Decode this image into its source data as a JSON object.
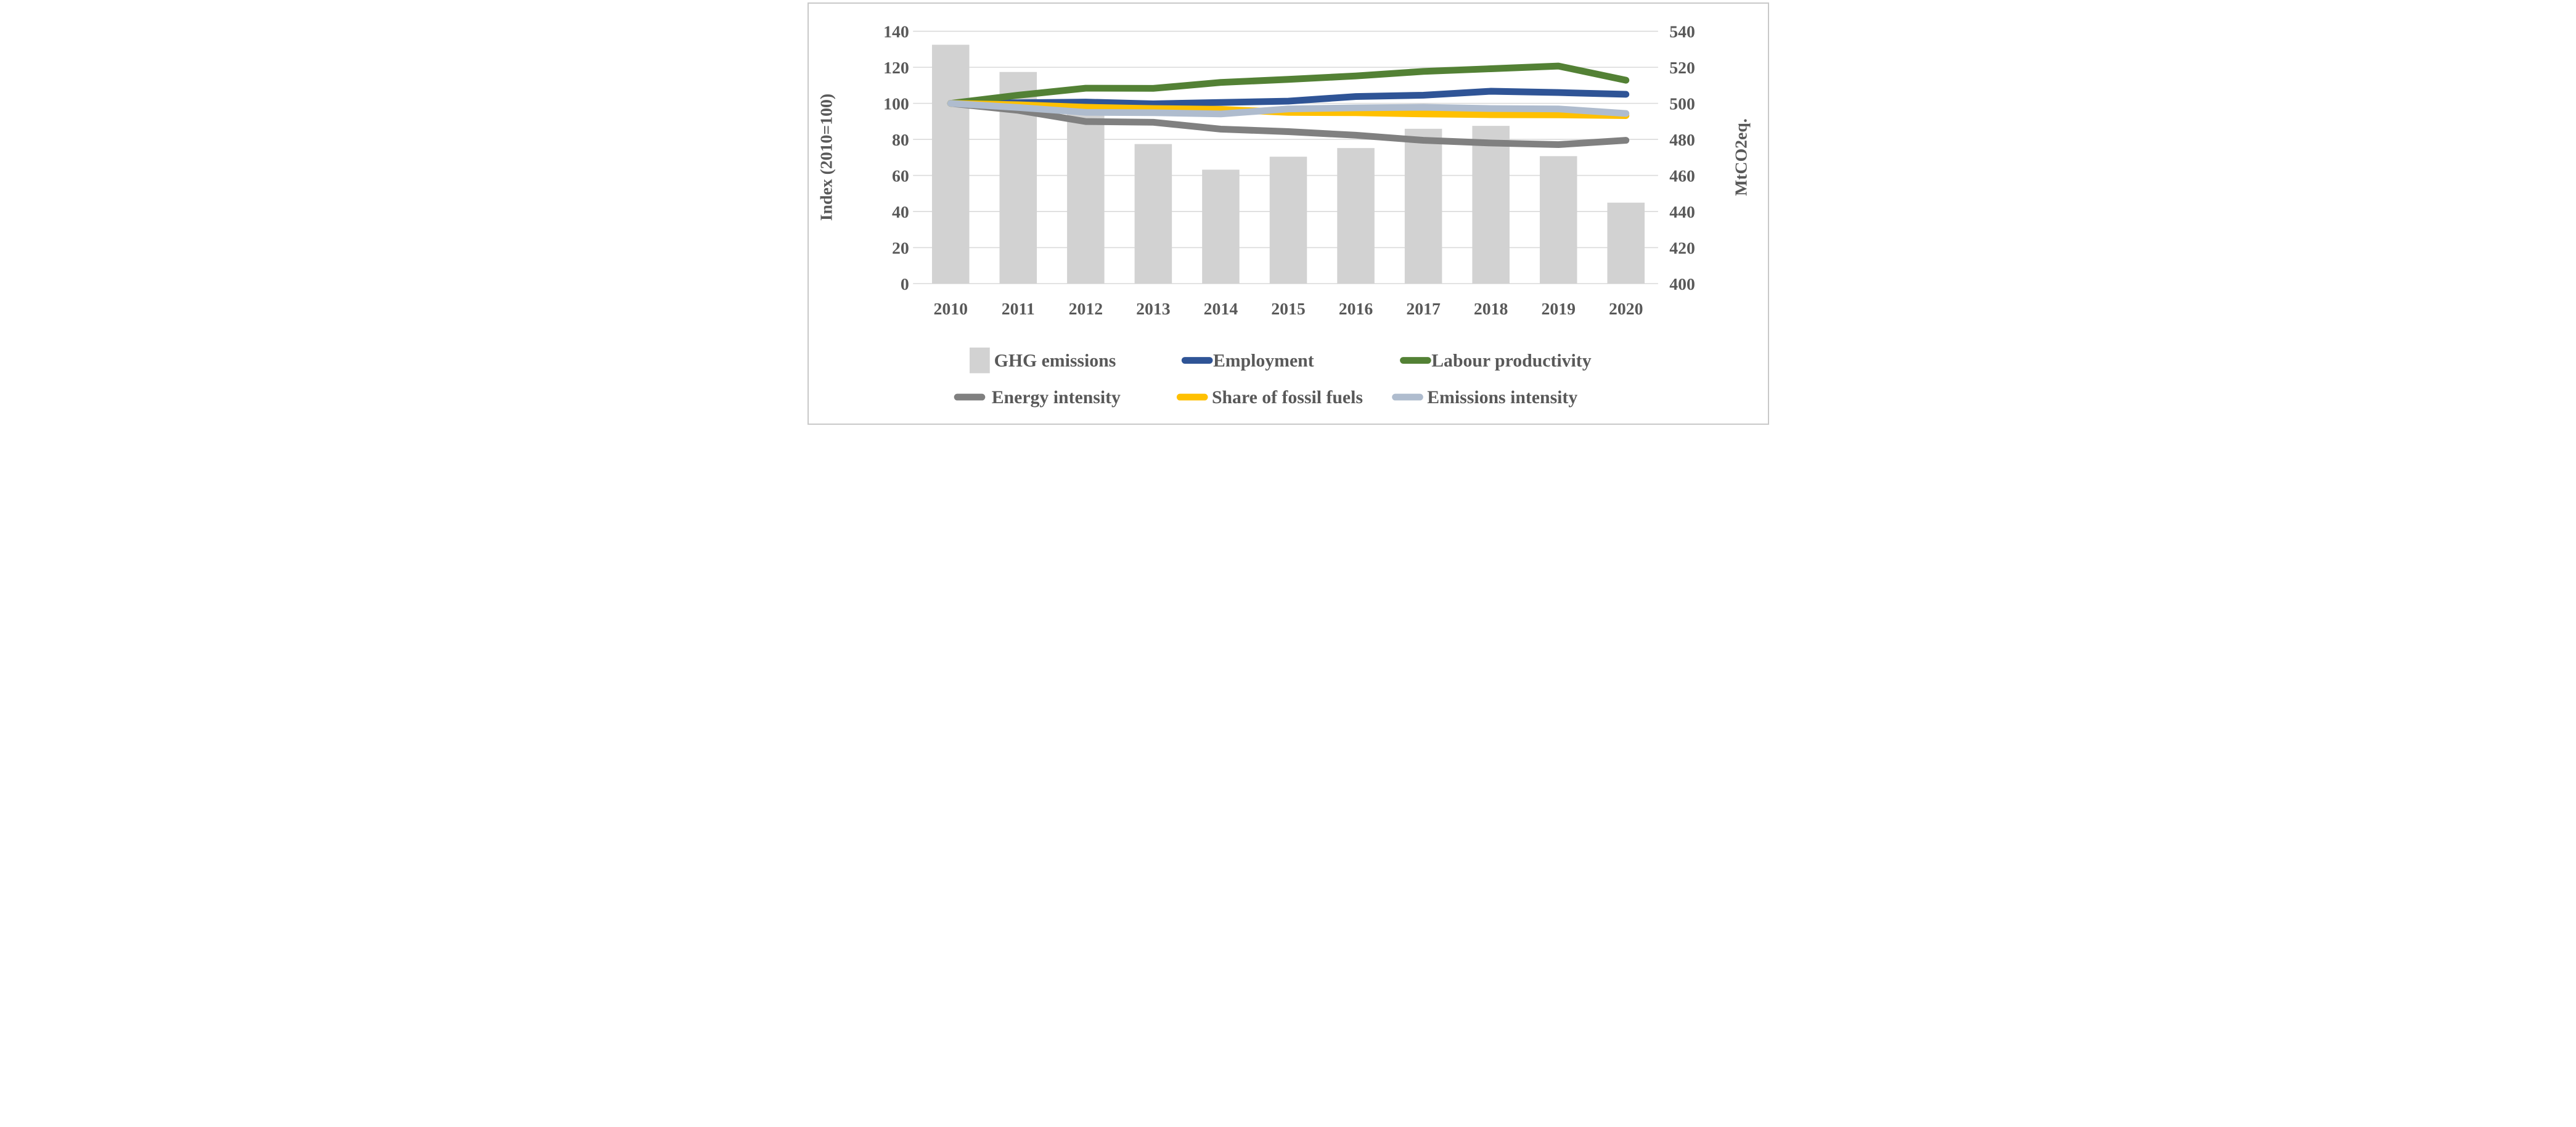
{
  "chart_data": {
    "type": "combo",
    "title": "",
    "categories": [
      "2010",
      "2011",
      "2012",
      "2013",
      "2014",
      "2015",
      "2016",
      "2017",
      "2018",
      "2019",
      "2020"
    ],
    "bar_series": {
      "name": "GHG emissions",
      "axis": "right",
      "unit": "MtCO2eq.",
      "values_mtco2eq": [
        532.5,
        517.4,
        495.0,
        477.4,
        463.2,
        470.4,
        475.2,
        485.9,
        487.5,
        470.7,
        444.9
      ],
      "color": "#d2d2d2"
    },
    "line_series": [
      {
        "name": "Employment",
        "color": "#2f5496",
        "values": [
          100,
          100.3,
          100.7,
          99.7,
          100.5,
          101.2,
          103.8,
          104.5,
          106.7,
          106.0,
          105.0
        ]
      },
      {
        "name": "Labour productivity",
        "color": "#538135",
        "values": [
          100,
          104.5,
          108.4,
          108.3,
          111.6,
          113.3,
          115.2,
          117.7,
          119.2,
          120.7,
          112.8
        ]
      },
      {
        "name": "Energy intensity",
        "color": "#808080",
        "values": [
          100,
          96.1,
          89.9,
          89.5,
          85.7,
          84.3,
          82.3,
          79.5,
          78.0,
          77.1,
          79.5
        ]
      },
      {
        "name": "Share of fossil fuels",
        "color": "#ffc000",
        "values": [
          100,
          99.2,
          97.8,
          97.1,
          96.7,
          95.0,
          94.8,
          94.1,
          93.7,
          93.6,
          93.2
        ]
      },
      {
        "name": "Emissions intensity",
        "color": "#afbcce",
        "values": [
          100,
          97.7,
          95.0,
          94.8,
          94.1,
          96.9,
          97.5,
          97.8,
          97.1,
          96.9,
          94.4
        ]
      }
    ],
    "left_axis": {
      "label": "Index (2010=100)",
      "min": 0,
      "max": 140,
      "step": 20,
      "ticks": [
        "0",
        "20",
        "40",
        "60",
        "80",
        "100",
        "120",
        "140"
      ]
    },
    "right_axis": {
      "label": "MtCO2eq.",
      "min": 400,
      "max": 540,
      "step": 20,
      "ticks": [
        "400",
        "420",
        "440",
        "460",
        "480",
        "500",
        "520",
        "540"
      ]
    },
    "grid": true,
    "legend_position": "bottom",
    "legend": [
      {
        "label": "GHG emissions",
        "marker": "bar",
        "color": "#d2d2d2"
      },
      {
        "label": "Employment",
        "marker": "line",
        "color": "#2f5496"
      },
      {
        "label": "Labour productivity",
        "marker": "line",
        "color": "#538135"
      },
      {
        "label": "Energy intensity",
        "marker": "line",
        "color": "#808080"
      },
      {
        "label": "Share of fossil fuels",
        "marker": "line",
        "color": "#ffc000"
      },
      {
        "label": "Emissions intensity",
        "marker": "line",
        "color": "#afbcce"
      }
    ]
  },
  "styles": {
    "grid_color": "#dadada",
    "text_color": "#595959",
    "frame_border_color": "#c9c9c9",
    "background": "#ffffff"
  }
}
